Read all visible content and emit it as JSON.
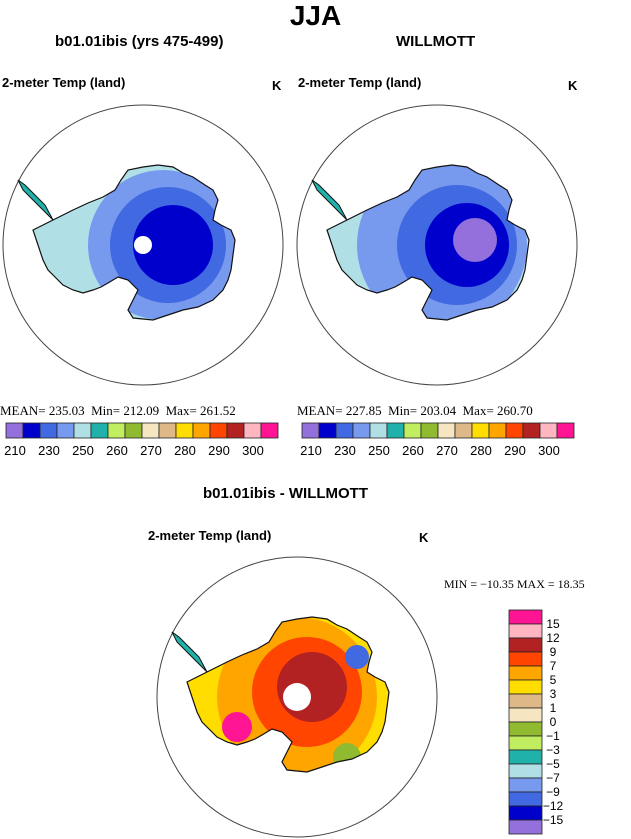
{
  "chart_data": [
    {
      "type": "heatmap",
      "title": "JJA",
      "panel_title": "b01.01ibis (yrs 475-499)",
      "left_label": "2-meter Temp (land)",
      "units": "K",
      "stats": {
        "mean_label": "MEAN=",
        "mean": "235.03",
        "min_label": "Min=",
        "min": "212.09",
        "max_label": "Max=",
        "max": "261.52"
      },
      "colorbar_ticks": [
        "210",
        "230",
        "250",
        "260",
        "270",
        "280",
        "290",
        "300"
      ]
    },
    {
      "type": "heatmap",
      "panel_title": "WILLMOTT",
      "left_label": "2-meter Temp (land)",
      "units": "K",
      "stats": {
        "mean_label": "MEAN=",
        "mean": "227.85",
        "min_label": "Min=",
        "min": "203.04",
        "max_label": "Max=",
        "max": "260.70"
      },
      "colorbar_ticks": [
        "210",
        "230",
        "250",
        "260",
        "270",
        "280",
        "290",
        "300"
      ]
    },
    {
      "type": "heatmap",
      "panel_title": "b01.01ibis - WILLMOTT",
      "left_label": "2-meter Temp (land)",
      "units": "K",
      "stats_text": "MIN = −10.35 MAX =   18.35",
      "colorbar_ticks": [
        "15",
        "12",
        "9",
        "7",
        "5",
        "3",
        "1",
        "0",
        "−1",
        "−3",
        "−5",
        "−7",
        "−9",
        "−12",
        "−15"
      ]
    }
  ],
  "abs_colors": [
    "#9370db",
    "#0000cd",
    "#4169e1",
    "#7799ee",
    "#b0e0e6",
    "#20b2aa",
    "#c0ee60",
    "#90bb30",
    "#f5e5c0",
    "#deb887",
    "#ffdd00",
    "#ffa500",
    "#ff4500",
    "#b22222",
    "#ffb6c1",
    "#ff1493"
  ],
  "diff_colors_top_to_bottom": [
    "#ff1493",
    "#ffb6c1",
    "#b22222",
    "#ff4500",
    "#ffa500",
    "#ffdd00",
    "#deb887",
    "#f5e5c0",
    "#90bb30",
    "#c0ee60",
    "#20b2aa",
    "#b0e0e6",
    "#7799ee",
    "#4169e1",
    "#0000cd",
    "#9370db"
  ]
}
